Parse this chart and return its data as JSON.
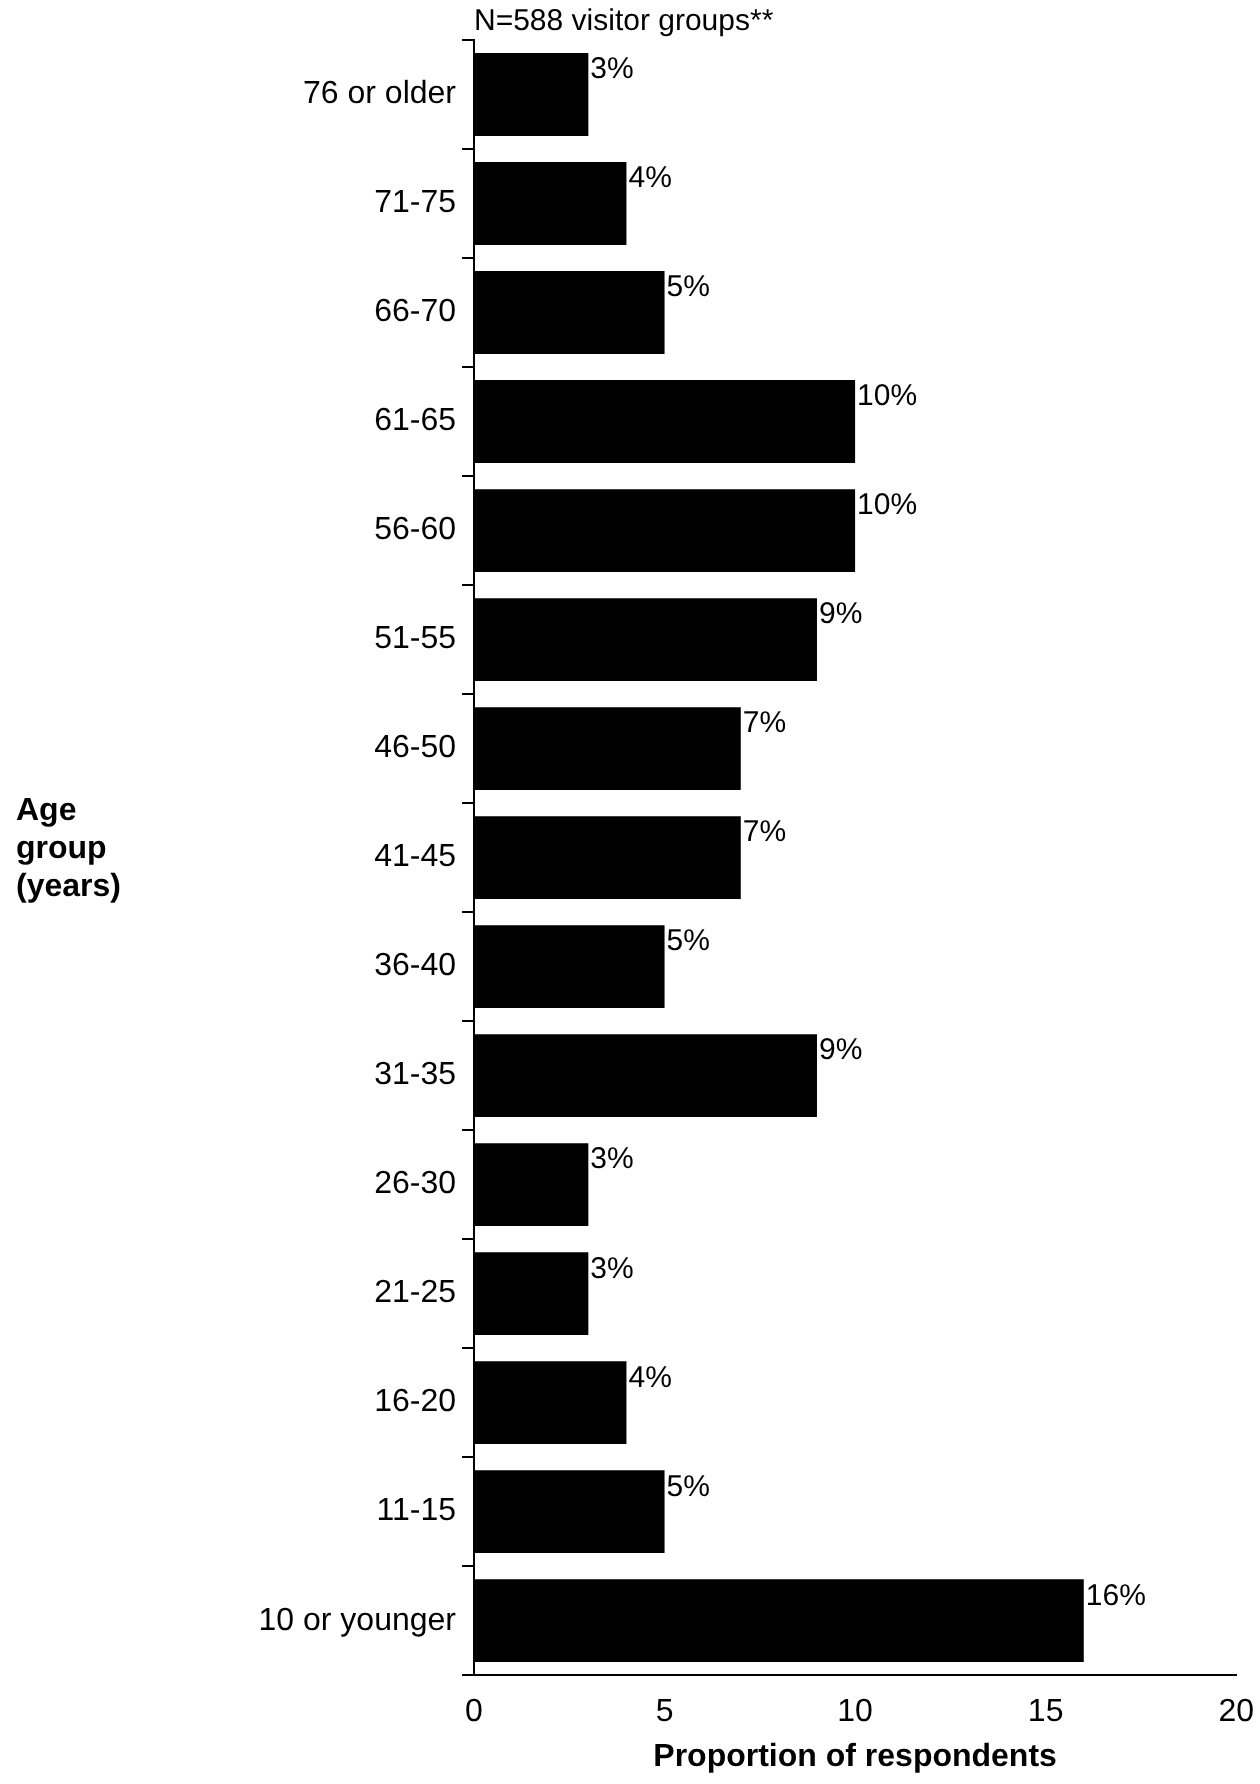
{
  "chart_data": {
    "type": "bar",
    "orientation": "horizontal",
    "title": "N=588 visitor groups**",
    "xlabel": "Proportion of respondents",
    "ylabel": "Age group (years)",
    "categories": [
      "76 or older",
      "71-75",
      "66-70",
      "61-65",
      "56-60",
      "51-55",
      "46-50",
      "41-45",
      "36-40",
      "31-35",
      "26-30",
      "21-25",
      "16-20",
      "11-15",
      "10 or younger"
    ],
    "values": [
      3,
      4,
      5,
      10,
      10,
      9,
      7,
      7,
      5,
      9,
      3,
      3,
      4,
      5,
      16
    ],
    "value_labels": [
      "3%",
      "4%",
      "5%",
      "10%",
      "10%",
      "9%",
      "7%",
      "7%",
      "5%",
      "9%",
      "3%",
      "3%",
      "4%",
      "5%",
      "16%"
    ],
    "color": "#000000",
    "xlim": [
      0,
      20
    ],
    "xticks": [
      0,
      5,
      10,
      15,
      20
    ],
    "grid": false,
    "legend": false
  }
}
